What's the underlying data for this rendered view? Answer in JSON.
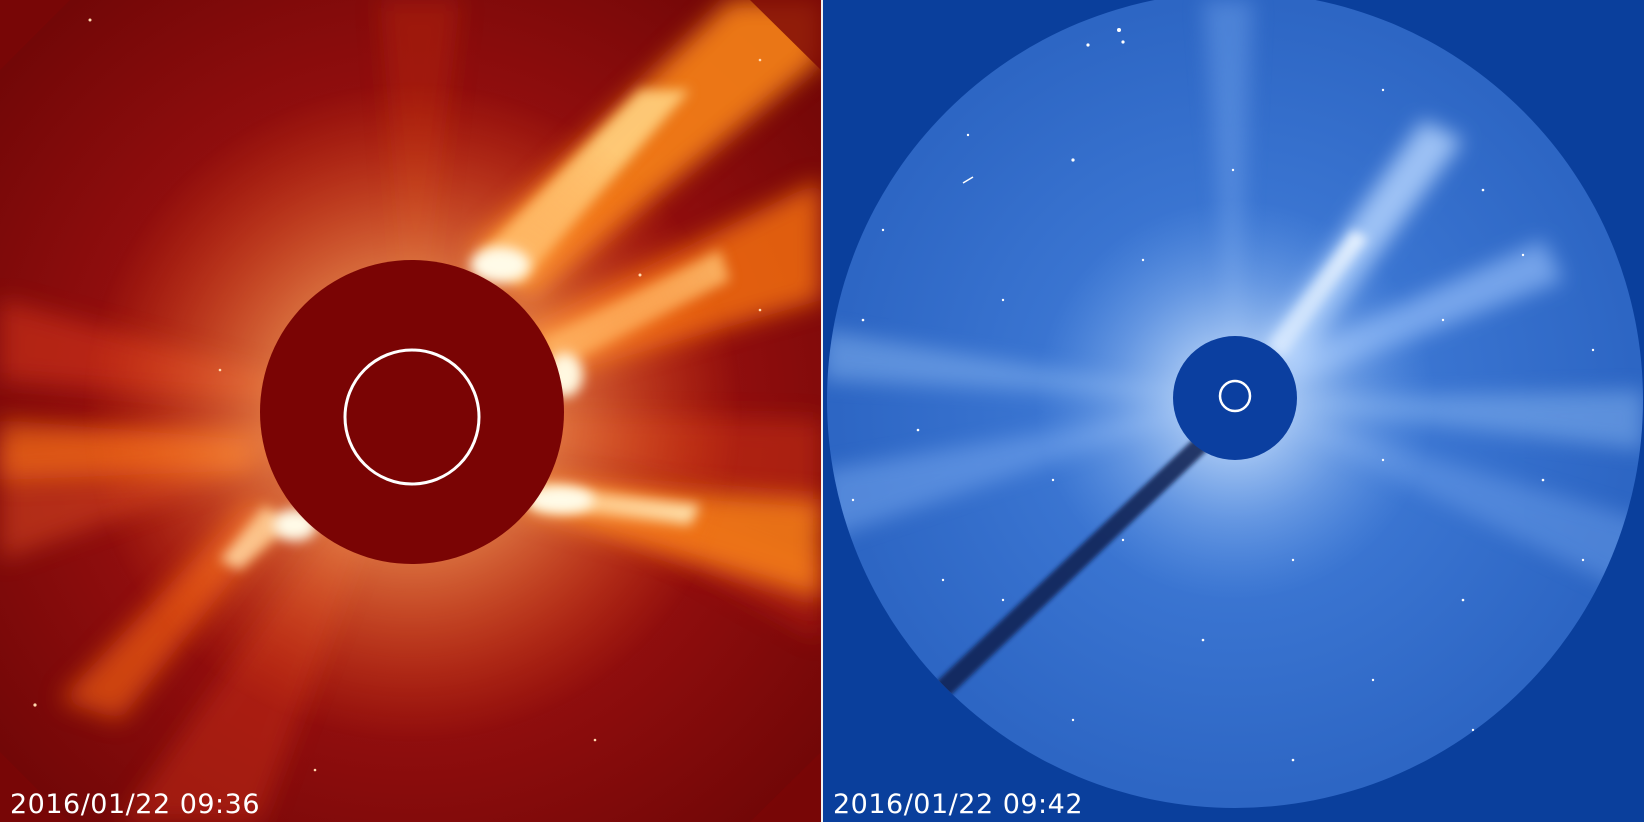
{
  "panels": {
    "c2": {
      "timestamp": "2016/01/22 09:36",
      "colors": {
        "background": "#8a0a0a",
        "occulter": "#7a0404",
        "streamer_core": "#fff4c8",
        "streamer_mid": "#ff8a1a",
        "sun_outline": "#ffffff"
      }
    },
    "c3": {
      "timestamp": "2016/01/22 09:42",
      "colors": {
        "background": "#0a3f9c",
        "field": "#2f6fcf",
        "occulter": "#0b3fa0",
        "streamer_core": "#e6f2ff",
        "sun_outline": "#ffffff"
      }
    }
  }
}
